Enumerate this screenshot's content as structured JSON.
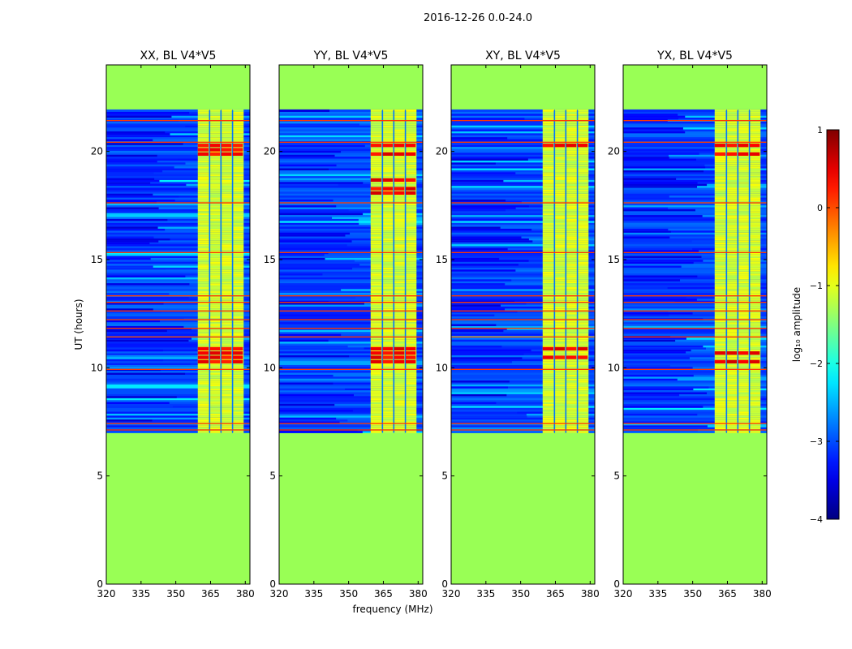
{
  "figure": {
    "suptitle": "2016-12-26 0.0-24.0",
    "xlabel": "frequency (MHz)",
    "ylabel": "UT (hours)",
    "colorbar_label": "log₁₀ amplitude"
  },
  "chart_data": {
    "type": "heatmap",
    "title": "2016-12-26 0.0-24.0",
    "xlabel": "frequency (MHz)",
    "ylabel": "UT (hours)",
    "xlim": [
      320,
      382
    ],
    "ylim": [
      0,
      24
    ],
    "x_ticks": [
      320,
      335,
      350,
      365,
      380
    ],
    "y_ticks": [
      0,
      5,
      10,
      15,
      20
    ],
    "data_time_range": [
      7.0,
      21.9
    ],
    "band_segments_mhz": [
      [
        359.5,
        364.5
      ],
      [
        364.7,
        369.4
      ],
      [
        369.6,
        374.4
      ],
      [
        374.6,
        379.3
      ]
    ],
    "panels": [
      {
        "title": "XX, BL V4*V5",
        "hot_rows_hours": [
          10.2,
          10.4,
          10.6,
          10.8,
          19.8,
          20.0,
          20.2
        ]
      },
      {
        "title": "YY, BL V4*V5",
        "hot_rows_hours": [
          10.2,
          10.4,
          10.6,
          10.8,
          19.8,
          20.2,
          18.0,
          18.2,
          18.6
        ]
      },
      {
        "title": "XY, BL V4*V5",
        "hot_rows_hours": [
          10.4,
          10.8,
          20.2
        ]
      },
      {
        "title": "YX, BL V4*V5",
        "hot_rows_hours": [
          10.2,
          10.6,
          19.8,
          20.2
        ]
      }
    ],
    "colorbar": {
      "label": "log₁₀ amplitude",
      "range": [
        -4,
        1
      ],
      "ticks": [
        -4,
        -3,
        -2,
        -1,
        0,
        1
      ],
      "tick_labels": [
        "−4",
        "−3",
        "−2",
        "−1",
        "0",
        "1"
      ],
      "colormap": "jet"
    },
    "masked_value_color": "#99ff55",
    "flagged_rows_hours": [
      7.1,
      7.4,
      9.9,
      11.4,
      11.8,
      12.2,
      12.6,
      13.0,
      13.3,
      15.3,
      17.6,
      20.4,
      21.4
    ]
  }
}
